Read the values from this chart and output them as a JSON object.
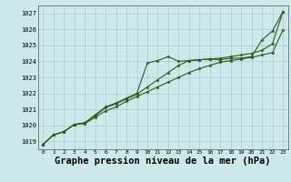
{
  "background_color": "#cce8ea",
  "plot_bg_color": "#cce8ea",
  "grid_color": "#aacccc",
  "line_color": "#2d5a1b",
  "marker_color": "#2d5a1b",
  "xlabel": "Graphe pression niveau de la mer (hPa)",
  "xlabel_fontsize": 7.5,
  "xlim": [
    -0.5,
    23.5
  ],
  "ylim": [
    1018.5,
    1027.5
  ],
  "yticks": [
    1019,
    1020,
    1021,
    1022,
    1023,
    1024,
    1025,
    1026,
    1027
  ],
  "xticks": [
    0,
    1,
    2,
    3,
    4,
    5,
    6,
    7,
    8,
    9,
    10,
    11,
    12,
    13,
    14,
    15,
    16,
    17,
    18,
    19,
    20,
    21,
    22,
    23
  ],
  "series1": [
    1018.8,
    1019.4,
    1019.6,
    1020.05,
    1020.1,
    1020.5,
    1020.9,
    1021.15,
    1021.5,
    1021.8,
    1022.1,
    1022.4,
    1022.7,
    1023.0,
    1023.3,
    1023.55,
    1023.75,
    1023.95,
    1024.05,
    1024.15,
    1024.25,
    1024.4,
    1024.55,
    1025.95
  ],
  "series2": [
    1018.8,
    1019.4,
    1019.6,
    1020.05,
    1020.15,
    1020.6,
    1021.1,
    1021.35,
    1021.65,
    1021.95,
    1022.4,
    1022.85,
    1023.3,
    1023.75,
    1024.05,
    1024.1,
    1024.15,
    1024.2,
    1024.3,
    1024.4,
    1024.5,
    1024.7,
    1025.1,
    1027.1
  ],
  "series3": [
    1018.8,
    1019.4,
    1019.6,
    1020.05,
    1020.15,
    1020.65,
    1021.15,
    1021.4,
    1021.7,
    1022.0,
    1023.9,
    1024.05,
    1024.3,
    1024.0,
    1024.05,
    1024.1,
    1024.15,
    1024.1,
    1024.2,
    1024.2,
    1024.3,
    1025.35,
    1025.9,
    1027.1
  ]
}
